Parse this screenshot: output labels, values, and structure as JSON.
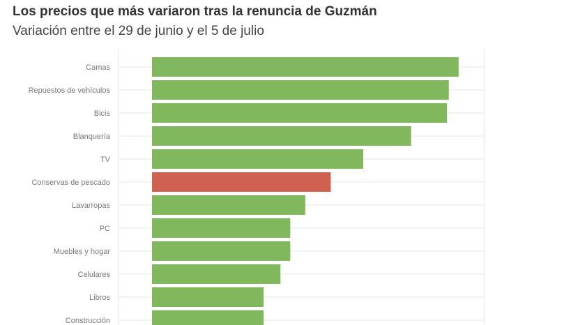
{
  "header": {
    "title": "Los precios que más variaron tras la renuncia de Guzmán",
    "subtitle": "Variación entre el 29 de junio y el 5 de julio"
  },
  "colors": {
    "positive": "#82b85d",
    "negative": "#d06050",
    "grid": "#e6e6e6"
  },
  "chart_data": {
    "type": "bar",
    "orientation": "horizontal",
    "title": "Los precios que más variaron tras la renuncia de Guzmán",
    "subtitle": "Variación entre el 29 de junio y el 5 de julio",
    "categories": [
      "Camas",
      "Repuestos de vehículos",
      "Bicis",
      "Blanquería",
      "TV",
      "Conservas de pescado",
      "Lavarropas",
      "PC",
      "Muebles y hogar",
      "Celulares",
      "Libros",
      "Construcción"
    ],
    "values": [
      100,
      96.8,
      96.2,
      84.5,
      68.9,
      58.3,
      50,
      45.1,
      45.1,
      41.9,
      36.4,
      36.4
    ],
    "highlight_index": 5,
    "xlim": [
      0,
      108
    ],
    "grid": true
  }
}
